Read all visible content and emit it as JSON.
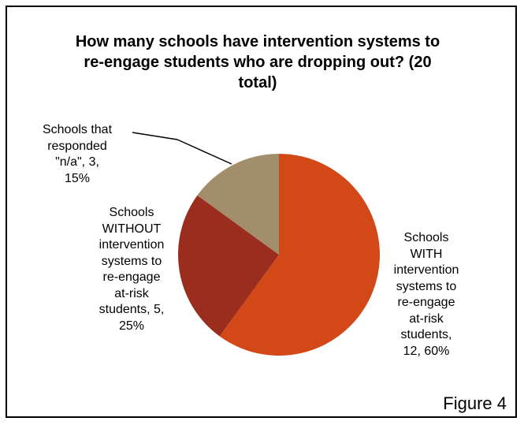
{
  "chart_data": {
    "type": "pie",
    "title": "How many schools have intervention systems to re-engage students who are dropping out? (20 total)",
    "total": 20,
    "slices": [
      {
        "label": "Schools WITH intervention systems to re-engage at-risk students",
        "value": 12,
        "percent": "60%",
        "label_lines": [
          "Schools",
          "WITH",
          "intervention",
          "systems to",
          "re-engage",
          "at-risk",
          "students,",
          "12, 60%"
        ],
        "color": "#D34817"
      },
      {
        "label": "Schools WITHOUT intervention systems to re-engage at-risk students",
        "value": 5,
        "percent": "25%",
        "label_lines": [
          "Schools",
          "WITHOUT",
          "intervention",
          "systems to",
          "re-engage",
          "at-risk",
          "students, 5,",
          "25%"
        ],
        "color": "#9B2D1F"
      },
      {
        "label": "Schools that responded \"n/a\"",
        "value": 3,
        "percent": "15%",
        "label_lines": [
          "Schools that",
          "responded",
          "\"n/a\", 3,",
          "15%"
        ],
        "color": "#A28E6A"
      }
    ],
    "start_angle": "12 o'clock",
    "direction": "clockwise",
    "legend": "none",
    "data_labels": "category, value, percentage"
  },
  "figure_caption": "Figure 4"
}
